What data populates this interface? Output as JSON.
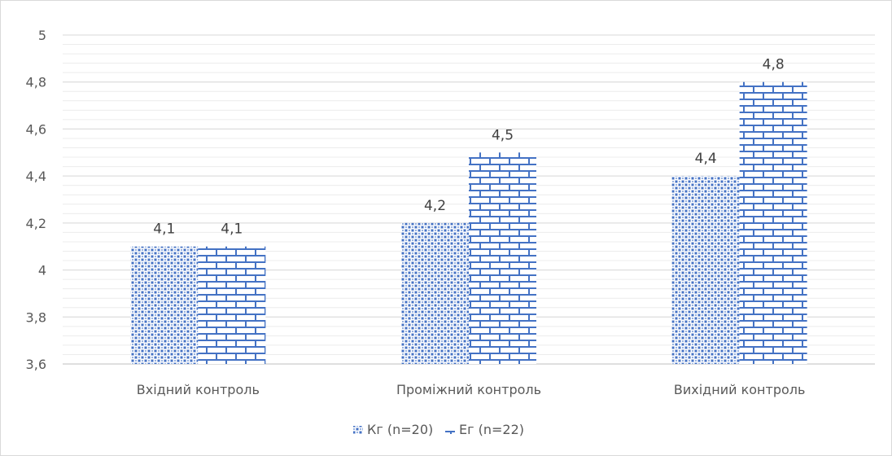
{
  "colors": {
    "series_fill": "#4472c4",
    "grid_major": "#d9d9d9",
    "grid_minor": "#ececec",
    "axis": "#bfbfbf",
    "text": "#595959"
  },
  "chart_data": {
    "type": "bar",
    "title": "",
    "xlabel": "",
    "ylabel": "",
    "categories": [
      "Вхідний контроль",
      "Проміжний контроль",
      "Вихідний контроль"
    ],
    "series": [
      {
        "name": "Кг (n=20)",
        "pattern": "dots",
        "values": [
          4.1,
          4.2,
          4.4
        ],
        "labels": [
          "4,1",
          "4,2",
          "4,4"
        ]
      },
      {
        "name": "Ег (n=22)",
        "pattern": "bricks",
        "values": [
          4.1,
          4.5,
          4.8
        ],
        "labels": [
          "4,1",
          "4,5",
          "4,8"
        ]
      }
    ],
    "ylim": [
      3.6,
      5
    ],
    "yticks": [
      3.6,
      3.8,
      4,
      4.2,
      4.4,
      4.6,
      4.8,
      5
    ],
    "ytick_labels": [
      "3,6",
      "3,8",
      "4",
      "4,2",
      "4,4",
      "4,6",
      "4,8",
      "5"
    ],
    "grid": true,
    "minor_grid": true,
    "legend_position": "bottom"
  }
}
